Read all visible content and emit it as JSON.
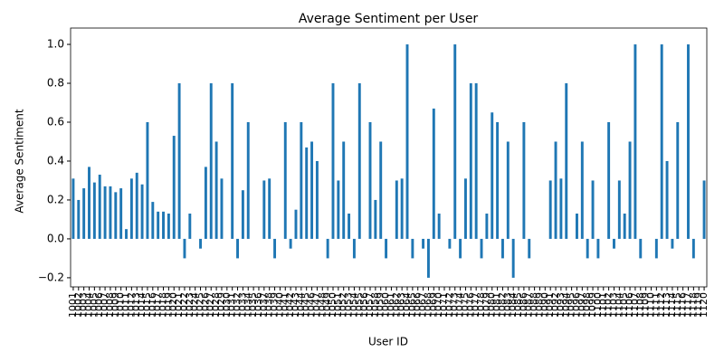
{
  "chart_data": {
    "type": "bar",
    "title": "Average Sentiment per User",
    "x_label": "User ID",
    "y_label": "Average Sentiment",
    "color": "#1f77b4",
    "categories": [
      "1001",
      "1002",
      "1003",
      "1004",
      "1005",
      "1006",
      "1007",
      "1008",
      "1009",
      "1010",
      "1011",
      "1012",
      "1013",
      "1014",
      "1015",
      "1016",
      "1017",
      "1018",
      "1019",
      "1020",
      "1021",
      "1022",
      "1023",
      "1024",
      "1025",
      "1026",
      "1027",
      "1028",
      "1029",
      "1030",
      "1031",
      "1032",
      "1033",
      "1034",
      "1035",
      "1036",
      "1037",
      "1038",
      "1039",
      "1040",
      "1041",
      "1042",
      "1043",
      "1044",
      "1045",
      "1046",
      "1047",
      "1048",
      "1049",
      "1050",
      "1051",
      "1052",
      "1053",
      "1054",
      "1055",
      "1056",
      "1057",
      "1058",
      "1059",
      "1060",
      "1061",
      "1062",
      "1063",
      "1064",
      "1065",
      "1066",
      "1067",
      "1068",
      "1069",
      "1070",
      "1071",
      "1072",
      "1073",
      "1074",
      "1075",
      "1076",
      "1077",
      "1078",
      "1079",
      "1080",
      "1081",
      "1082",
      "1083",
      "1084",
      "1085",
      "1086",
      "1087",
      "1088",
      "1089",
      "1090",
      "1091",
      "1092",
      "1093",
      "1094",
      "1095",
      "1096",
      "1097",
      "1098",
      "1099",
      "1100",
      "1101",
      "1102",
      "1103",
      "1104",
      "1105",
      "1106",
      "1107",
      "1108",
      "1109",
      "1110",
      "1111",
      "1112",
      "1113",
      "1114",
      "1115",
      "1116",
      "1117",
      "1118",
      "1119",
      "1120"
    ],
    "values": [
      0.31,
      0.2,
      0.26,
      0.37,
      0.29,
      0.33,
      0.27,
      0.27,
      0.24,
      0.26,
      0.05,
      0.31,
      0.34,
      0.28,
      0.6,
      0.19,
      0.14,
      0.14,
      0.13,
      0.53,
      0.8,
      -0.1,
      0.13,
      0,
      -0.05,
      0.37,
      0.8,
      0.5,
      0.31,
      0,
      0.8,
      -0.1,
      0.25,
      0.6,
      0,
      0,
      0.3,
      0.31,
      -0.1,
      0,
      0.6,
      -0.05,
      0.15,
      0.6,
      0.47,
      0.5,
      0.4,
      0,
      -0.1,
      0.8,
      0.3,
      0.5,
      0.13,
      -0.1,
      0.8,
      0,
      0.6,
      0.2,
      0.5,
      -0.1,
      0,
      0.3,
      0.31,
      1.0,
      -0.1,
      0,
      -0.05,
      -0.2,
      0.67,
      0.13,
      0,
      -0.05,
      1.0,
      -0.1,
      0.31,
      0.8,
      0.8,
      -0.1,
      0.13,
      0.65,
      0.6,
      -0.1,
      0.5,
      -0.2,
      0,
      0.6,
      -0.1,
      0,
      0,
      0,
      0.3,
      0.5,
      0.31,
      0.8,
      0,
      0.13,
      0.5,
      -0.1,
      0.3,
      -0.1,
      0,
      0.6,
      -0.05,
      0.3,
      0.13,
      0.5,
      1.0,
      -0.1,
      0,
      0,
      -0.1,
      1.0,
      0.4,
      -0.05,
      0.6,
      0,
      1.0,
      -0.1,
      0,
      0.3
    ],
    "ylim": [
      -0.247,
      1.084
    ],
    "yticks": [
      {
        "value": -0.2,
        "label": "−0.2"
      },
      {
        "value": 0,
        "label": "0.0"
      },
      0.2,
      0.4,
      0.6,
      0.8,
      {
        "value": 1,
        "label": "1.0"
      }
    ]
  }
}
